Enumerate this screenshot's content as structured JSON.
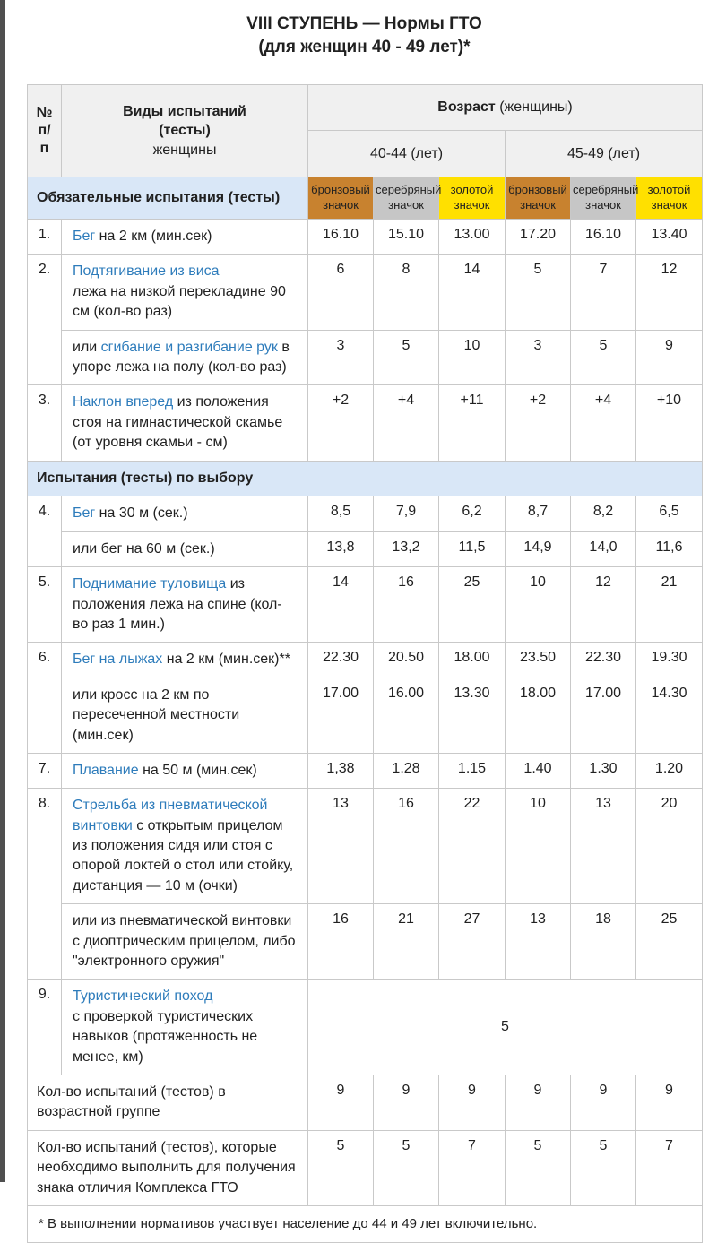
{
  "page": {
    "title_line1": "VIII СТУПЕНЬ — Нормы ГТО",
    "title_line2": "(для женщин 40 - 49 лет)*"
  },
  "colors": {
    "link": "#2e7cbb",
    "bronze": "#c8822f",
    "silver": "#c6c6c6",
    "gold": "#ffe000",
    "section_bg": "#d9e7f7",
    "header_bg": "#f0f0f0",
    "border": "#c9c9c9",
    "strip": "#4f4f4f",
    "text": "#212121"
  },
  "table": {
    "header": {
      "num_col": "№\nп/\nп",
      "tests_col_bold": "Виды испытаний\n(тесты)",
      "tests_col_normal": "женщины",
      "age_bold": "Возраст",
      "age_normal": "(женщины)",
      "age_groups": [
        "40-44 (лет)",
        "45-49 (лет)"
      ],
      "badges": [
        {
          "label": "бронзовый значок",
          "kind": "bronze"
        },
        {
          "label": "серебряный значок",
          "kind": "silver"
        },
        {
          "label": "золотой значок",
          "kind": "gold"
        }
      ]
    },
    "rows": [
      {
        "type": "section_badges",
        "label": "Обязательные испытания (тесты)"
      },
      {
        "type": "item",
        "num": "1.",
        "parts": [
          {
            "t": "Бег",
            "link": true
          },
          {
            "t": " на 2 км (мин.сек)"
          }
        ],
        "values": [
          "16.10",
          "15.10",
          "13.00",
          "17.20",
          "16.10",
          "13.40"
        ]
      },
      {
        "type": "item",
        "num": "2.",
        "numspan": 2,
        "parts": [
          {
            "t": "Подтягивание из виса",
            "link": true
          },
          {
            "t": "\nлежа на низкой перекладине 90 см (кол-во раз)"
          }
        ],
        "values": [
          "6",
          "8",
          "14",
          "5",
          "7",
          "12"
        ]
      },
      {
        "type": "sub",
        "parts": [
          {
            "t": "или "
          },
          {
            "t": "сгибание и разгибание рук",
            "link": true
          },
          {
            "t": " в упоре лежа на полу (кол-во раз)"
          }
        ],
        "values": [
          "3",
          "5",
          "10",
          "3",
          "5",
          "9"
        ]
      },
      {
        "type": "item",
        "num": "3.",
        "parts": [
          {
            "t": "Наклон вперед",
            "link": true
          },
          {
            "t": " из положения стоя на гимнастической скамье (от уровня скамьи - см)"
          }
        ],
        "values": [
          "+2",
          "+4",
          "+11",
          "+2",
          "+4",
          "+10"
        ]
      },
      {
        "type": "section_full",
        "label": "Испытания (тесты) по выбору"
      },
      {
        "type": "item",
        "num": "4.",
        "numspan": 2,
        "parts": [
          {
            "t": "Бег",
            "link": true
          },
          {
            "t": " на 30 м (сек.)"
          }
        ],
        "values": [
          "8,5",
          "7,9",
          "6,2",
          "8,7",
          "8,2",
          "6,5"
        ]
      },
      {
        "type": "sub",
        "parts": [
          {
            "t": "или бег на 60 м (сек.)"
          }
        ],
        "values": [
          "13,8",
          "13,2",
          "11,5",
          "14,9",
          "14,0",
          "11,6"
        ]
      },
      {
        "type": "item",
        "num": "5.",
        "parts": [
          {
            "t": "Поднимание туловища",
            "link": true
          },
          {
            "t": " из положения лежа на спине (кол-во раз 1 мин.)"
          }
        ],
        "values": [
          "14",
          "16",
          "25",
          "10",
          "12",
          "21"
        ]
      },
      {
        "type": "item",
        "num": "6.",
        "numspan": 2,
        "parts": [
          {
            "t": "Бег на лыжах",
            "link": true
          },
          {
            "t": " на 2 км (мин.сек)**"
          }
        ],
        "values": [
          "22.30",
          "20.50",
          "18.00",
          "23.50",
          "22.30",
          "19.30"
        ]
      },
      {
        "type": "sub",
        "parts": [
          {
            "t": "или кросс на 2 км по пересеченной местности (мин.сек)"
          }
        ],
        "values": [
          "17.00",
          "16.00",
          "13.30",
          "18.00",
          "17.00",
          "14.30"
        ]
      },
      {
        "type": "item",
        "num": "7.",
        "parts": [
          {
            "t": "Плавание",
            "link": true
          },
          {
            "t": " на 50 м (мин.сек)"
          }
        ],
        "values": [
          "1,38",
          "1.28",
          "1.15",
          "1.40",
          "1.30",
          "1.20"
        ]
      },
      {
        "type": "item",
        "num": "8.",
        "numspan": 2,
        "parts": [
          {
            "t": "Стрельба из пневматической винтовки",
            "link": true
          },
          {
            "t": " с открытым прицелом из положения сидя или стоя с опорой локтей о стол или стойку,\nдистанция — 10 м (очки)"
          }
        ],
        "values": [
          "13",
          "16",
          "22",
          "10",
          "13",
          "20"
        ]
      },
      {
        "type": "sub",
        "parts": [
          {
            "t": "или из пневматической винтовки с диоптрическим прицелом, либо \"электронного оружия\""
          }
        ],
        "values": [
          "16",
          "21",
          "27",
          "13",
          "18",
          "25"
        ]
      },
      {
        "type": "item",
        "num": "9.",
        "parts": [
          {
            "t": "Туристический поход",
            "link": true
          },
          {
            "t": "\nс проверкой туристических навыков (протяженность не менее, км)"
          }
        ],
        "merged_value": "5"
      },
      {
        "type": "summary",
        "label": "Кол-во испытаний (тестов) в возрастной группе",
        "values": [
          "9",
          "9",
          "9",
          "9",
          "9",
          "9"
        ]
      },
      {
        "type": "summary",
        "label": "Кол-во испытаний (тестов), которые необходимо выполнить для получения знака отличия Комплекса ГТО",
        "values": [
          "5",
          "5",
          "7",
          "5",
          "5",
          "7"
        ]
      },
      {
        "type": "footnote",
        "label": "* В выполнении нормативов участвует население до 44 и 49 лет включительно."
      }
    ]
  }
}
